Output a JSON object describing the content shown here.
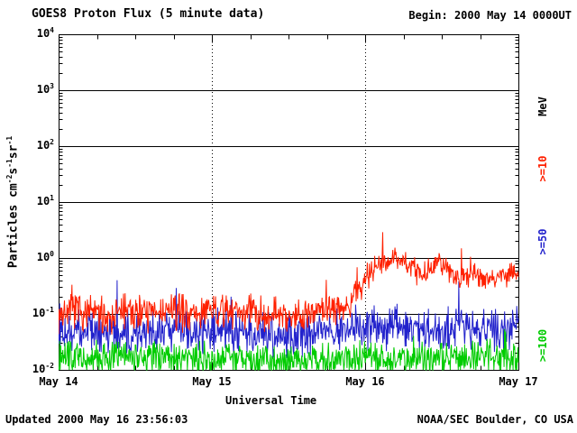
{
  "header": {
    "title": "GOES8 Proton Flux (5 minute data)",
    "begin_label": "Begin: 2000 May 14 0000UT"
  },
  "footer": {
    "updated": "Updated 2000 May 16 23:56:03",
    "credit": "NOAA/SEC Boulder, CO USA"
  },
  "chart_data": {
    "type": "line",
    "title": "GOES8 Proton Flux (5 minute data)",
    "xlabel": "Universal Time",
    "ylabel_parts": [
      "Particles cm",
      "-2",
      "s",
      "-1",
      "sr",
      "-1"
    ],
    "right_axis_label": "MeV",
    "x_ticks": [
      "May 14",
      "May 15",
      "May 16",
      "May 17"
    ],
    "x_tick_positions_days": [
      0,
      1,
      2,
      3
    ],
    "x_range_days": [
      0,
      3
    ],
    "y_scale": "log10",
    "y_log_range": [
      -2,
      4
    ],
    "grid": {
      "horizontal": "solid-per-decade",
      "vertical": "dotted-per-day"
    },
    "legend_position": "right-rotated",
    "legend": [
      {
        "label": ">=10",
        "color": "#ff2000"
      },
      {
        "label": ">=50",
        "color": "#2222cc"
      },
      {
        "label": ">=100",
        "color": "#00cc00"
      }
    ],
    "points_per_day": 288,
    "series": [
      {
        "name": ">=10 MeV proton flux",
        "color": "#ff2000",
        "spike": {
          "p": 0.012,
          "amp": 0.35
        },
        "envelope": [
          [
            0.0,
            0.1,
            0.26
          ],
          [
            0.15,
            0.11,
            0.26
          ],
          [
            0.3,
            0.095,
            0.26
          ],
          [
            0.45,
            0.11,
            0.26
          ],
          [
            0.6,
            0.1,
            0.26
          ],
          [
            0.75,
            0.115,
            0.26
          ],
          [
            0.9,
            0.1,
            0.26
          ],
          [
            1.05,
            0.11,
            0.26
          ],
          [
            1.2,
            0.12,
            0.26
          ],
          [
            1.35,
            0.1,
            0.26
          ],
          [
            1.5,
            0.095,
            0.26
          ],
          [
            1.65,
            0.11,
            0.24
          ],
          [
            1.8,
            0.12,
            0.22
          ],
          [
            1.9,
            0.16,
            0.2
          ],
          [
            1.98,
            0.32,
            0.18
          ],
          [
            2.05,
            0.6,
            0.16
          ],
          [
            2.12,
            0.85,
            0.15
          ],
          [
            2.2,
            1.0,
            0.15
          ],
          [
            2.28,
            0.8,
            0.16
          ],
          [
            2.36,
            0.5,
            0.18
          ],
          [
            2.44,
            0.65,
            0.16
          ],
          [
            2.52,
            0.72,
            0.16
          ],
          [
            2.6,
            0.48,
            0.18
          ],
          [
            2.7,
            0.55,
            0.17
          ],
          [
            2.8,
            0.42,
            0.18
          ],
          [
            2.9,
            0.55,
            0.17
          ],
          [
            3.0,
            0.48,
            0.17
          ]
        ]
      },
      {
        "name": ">=50 MeV proton flux",
        "color": "#2222cc",
        "spike": {
          "p": 0.02,
          "amp": 0.55
        },
        "envelope": [
          [
            0.0,
            0.045,
            0.3
          ],
          [
            0.3,
            0.05,
            0.3
          ],
          [
            0.6,
            0.045,
            0.3
          ],
          [
            0.9,
            0.05,
            0.3
          ],
          [
            1.2,
            0.048,
            0.3
          ],
          [
            1.5,
            0.042,
            0.3
          ],
          [
            1.8,
            0.05,
            0.3
          ],
          [
            2.0,
            0.055,
            0.3
          ],
          [
            2.2,
            0.06,
            0.3
          ],
          [
            2.4,
            0.055,
            0.3
          ],
          [
            2.6,
            0.06,
            0.3
          ],
          [
            2.8,
            0.055,
            0.3
          ],
          [
            3.0,
            0.06,
            0.3
          ]
        ]
      },
      {
        "name": ">=100 MeV proton flux",
        "color": "#00cc00",
        "spike": {
          "p": 0.012,
          "amp": 0.3
        },
        "envelope": [
          [
            0.0,
            0.016,
            0.24
          ],
          [
            0.5,
            0.017,
            0.24
          ],
          [
            1.0,
            0.015,
            0.24
          ],
          [
            1.5,
            0.015,
            0.24
          ],
          [
            2.0,
            0.016,
            0.24
          ],
          [
            2.5,
            0.017,
            0.24
          ],
          [
            3.0,
            0.016,
            0.24
          ]
        ]
      }
    ]
  }
}
